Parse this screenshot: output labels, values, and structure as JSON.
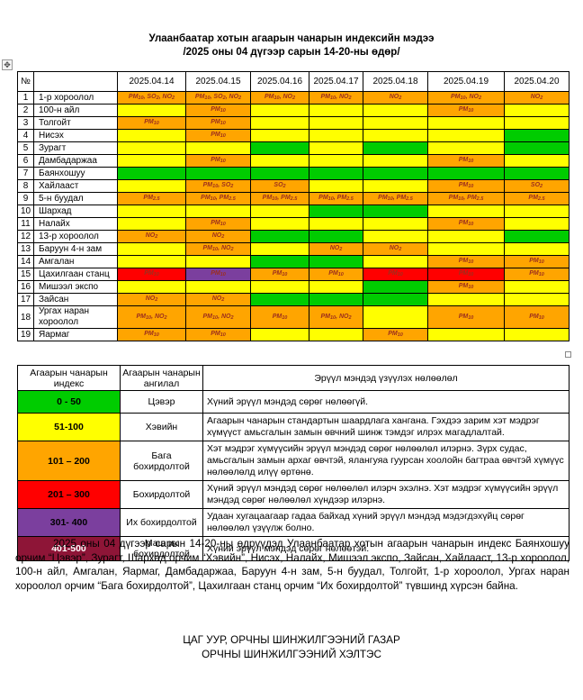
{
  "title": {
    "line1": "Улаанбаатар хотын агаарын чанарын индексийн мэдээ",
    "line2": "/2025 оны 04 дүгээр сарын 14-20-ны өдөр/"
  },
  "colors": {
    "green": "#00cc00",
    "yellow": "#ffff00",
    "orange": "#ffa500",
    "red": "#ff0000",
    "purple": "#7b3f9e",
    "darkred": "#8e1537",
    "cell_text": "#9c2f1d"
  },
  "icons": {
    "table_move_handle": "✥",
    "table_resize_handle": ""
  },
  "aqi_table": {
    "number_header": "№",
    "name_header": "",
    "date_columns": [
      "2025.04.14",
      "2025.04.15",
      "2025.04.16",
      "2025.04.17",
      "2025.04.18",
      "2025.04.19",
      "2025.04.20"
    ],
    "rows": [
      {
        "num": "1",
        "name": "1-р хороолол",
        "cells": [
          {
            "t": "PM10, SO2, NO2",
            "c": "orange"
          },
          {
            "t": "PM10, SO2, NO2",
            "c": "orange"
          },
          {
            "t": "PM10, NO2",
            "c": "orange"
          },
          {
            "t": "PM10, NO2",
            "c": "orange"
          },
          {
            "t": "NO2",
            "c": "orange"
          },
          {
            "t": "PM10, NO2",
            "c": "orange"
          },
          {
            "t": "NO2",
            "c": "orange"
          }
        ]
      },
      {
        "num": "2",
        "name": "100-н айл",
        "cells": [
          {
            "t": "",
            "c": "yellow"
          },
          {
            "t": "PM10",
            "c": "orange"
          },
          {
            "t": "",
            "c": "yellow"
          },
          {
            "t": "",
            "c": "yellow"
          },
          {
            "t": "",
            "c": "yellow"
          },
          {
            "t": "PM10",
            "c": "orange"
          },
          {
            "t": "",
            "c": "yellow"
          }
        ]
      },
      {
        "num": "3",
        "name": "Толгойт",
        "cells": [
          {
            "t": "PM10",
            "c": "orange"
          },
          {
            "t": "PM10",
            "c": "orange"
          },
          {
            "t": "",
            "c": "yellow"
          },
          {
            "t": "",
            "c": "yellow"
          },
          {
            "t": "",
            "c": "yellow"
          },
          {
            "t": "",
            "c": "yellow"
          },
          {
            "t": "",
            "c": "yellow"
          }
        ]
      },
      {
        "num": "4",
        "name": "Нисэх",
        "cells": [
          {
            "t": "",
            "c": "yellow"
          },
          {
            "t": "PM10",
            "c": "orange"
          },
          {
            "t": "",
            "c": "yellow"
          },
          {
            "t": "",
            "c": "yellow"
          },
          {
            "t": "",
            "c": "yellow"
          },
          {
            "t": "",
            "c": "yellow"
          },
          {
            "t": "",
            "c": "green"
          }
        ]
      },
      {
        "num": "5",
        "name": "Зурагт",
        "cells": [
          {
            "t": "",
            "c": "yellow"
          },
          {
            "t": "",
            "c": "yellow"
          },
          {
            "t": "",
            "c": "green"
          },
          {
            "t": "",
            "c": "yellow"
          },
          {
            "t": "",
            "c": "green"
          },
          {
            "t": "",
            "c": "yellow"
          },
          {
            "t": "",
            "c": "green"
          }
        ]
      },
      {
        "num": "6",
        "name": "Дамбадаржаа",
        "cells": [
          {
            "t": "",
            "c": "yellow"
          },
          {
            "t": "PM10",
            "c": "orange"
          },
          {
            "t": "",
            "c": "yellow"
          },
          {
            "t": "",
            "c": "yellow"
          },
          {
            "t": "",
            "c": "yellow"
          },
          {
            "t": "PM10",
            "c": "orange"
          },
          {
            "t": "",
            "c": "yellow"
          }
        ]
      },
      {
        "num": "7",
        "name": "Баянхошуу",
        "cells": [
          {
            "t": "",
            "c": "green"
          },
          {
            "t": "",
            "c": "green"
          },
          {
            "t": "",
            "c": "green"
          },
          {
            "t": "",
            "c": "green"
          },
          {
            "t": "",
            "c": "green"
          },
          {
            "t": "",
            "c": "green"
          },
          {
            "t": "",
            "c": "green"
          }
        ]
      },
      {
        "num": "8",
        "name": "Хайлааст",
        "cells": [
          {
            "t": "",
            "c": "yellow"
          },
          {
            "t": "PM10, SO2",
            "c": "orange"
          },
          {
            "t": "SO2",
            "c": "orange"
          },
          {
            "t": "",
            "c": "yellow"
          },
          {
            "t": "",
            "c": "yellow"
          },
          {
            "t": "PM10",
            "c": "orange"
          },
          {
            "t": "SO2",
            "c": "orange"
          }
        ]
      },
      {
        "num": "9",
        "name": "5-н буудал",
        "cells": [
          {
            "t": "PM2.5",
            "c": "orange"
          },
          {
            "t": "PM10, PM2.5",
            "c": "orange"
          },
          {
            "t": "PM10, PM2.5",
            "c": "orange"
          },
          {
            "t": "PM10, PM2.5",
            "c": "orange"
          },
          {
            "t": "PM10, PM2.5",
            "c": "orange"
          },
          {
            "t": "PM10, PM2.5",
            "c": "orange"
          },
          {
            "t": "PM2.5",
            "c": "orange"
          }
        ]
      },
      {
        "num": "10",
        "name": "Шархад",
        "cells": [
          {
            "t": "",
            "c": "yellow"
          },
          {
            "t": "",
            "c": "yellow"
          },
          {
            "t": "",
            "c": "yellow"
          },
          {
            "t": "",
            "c": "green"
          },
          {
            "t": "",
            "c": "green"
          },
          {
            "t": "",
            "c": "yellow"
          },
          {
            "t": "",
            "c": "yellow"
          }
        ]
      },
      {
        "num": "11",
        "name": "Налайх",
        "cells": [
          {
            "t": "",
            "c": "yellow"
          },
          {
            "t": "PM10",
            "c": "orange"
          },
          {
            "t": "",
            "c": "yellow"
          },
          {
            "t": "",
            "c": "yellow"
          },
          {
            "t": "",
            "c": "yellow"
          },
          {
            "t": "PM10",
            "c": "orange"
          },
          {
            "t": "",
            "c": "yellow"
          }
        ]
      },
      {
        "num": "12",
        "name": "13-р хороолол",
        "cells": [
          {
            "t": "NO2",
            "c": "orange"
          },
          {
            "t": "NO2",
            "c": "orange"
          },
          {
            "t": "",
            "c": "green"
          },
          {
            "t": "",
            "c": "green"
          },
          {
            "t": "",
            "c": "yellow"
          },
          {
            "t": "",
            "c": "yellow"
          },
          {
            "t": "",
            "c": "green"
          }
        ]
      },
      {
        "num": "13",
        "name": "Баруун 4-н зам",
        "cells": [
          {
            "t": "",
            "c": "yellow"
          },
          {
            "t": "PM10, NO2",
            "c": "orange"
          },
          {
            "t": "",
            "c": "yellow"
          },
          {
            "t": "NO2",
            "c": "orange"
          },
          {
            "t": "NO2",
            "c": "orange"
          },
          {
            "t": "",
            "c": "yellow"
          },
          {
            "t": "",
            "c": "yellow"
          }
        ]
      },
      {
        "num": "14",
        "name": "Амгалан",
        "cells": [
          {
            "t": "",
            "c": "yellow"
          },
          {
            "t": "",
            "c": "yellow"
          },
          {
            "t": "",
            "c": "green"
          },
          {
            "t": "",
            "c": "green"
          },
          {
            "t": "",
            "c": "yellow"
          },
          {
            "t": "PM10",
            "c": "orange"
          },
          {
            "t": "PM10",
            "c": "orange"
          }
        ]
      },
      {
        "num": "15",
        "name": "Цахилгаан станц",
        "cells": [
          {
            "t": "PM10",
            "c": "red"
          },
          {
            "t": "PM10",
            "c": "purple"
          },
          {
            "t": "PM10",
            "c": "orange"
          },
          {
            "t": "PM10",
            "c": "orange"
          },
          {
            "t": "PM10",
            "c": "red"
          },
          {
            "t": "PM10",
            "c": "red"
          },
          {
            "t": "PM10",
            "c": "orange"
          }
        ]
      },
      {
        "num": "16",
        "name": "Мишээл экспо",
        "cells": [
          {
            "t": "",
            "c": "yellow"
          },
          {
            "t": "",
            "c": "yellow"
          },
          {
            "t": "",
            "c": "yellow"
          },
          {
            "t": "",
            "c": "yellow"
          },
          {
            "t": "",
            "c": "green"
          },
          {
            "t": "PM10",
            "c": "orange"
          },
          {
            "t": "",
            "c": "yellow"
          }
        ]
      },
      {
        "num": "17",
        "name": "Зайсан",
        "cells": [
          {
            "t": "NO2",
            "c": "orange"
          },
          {
            "t": "NO2",
            "c": "orange"
          },
          {
            "t": "",
            "c": "green"
          },
          {
            "t": "",
            "c": "green"
          },
          {
            "t": "",
            "c": "green"
          },
          {
            "t": "",
            "c": "yellow"
          },
          {
            "t": "",
            "c": "yellow"
          }
        ]
      },
      {
        "num": "18",
        "name": "Ургах наран хороолол",
        "cells": [
          {
            "t": "PM10, NO2",
            "c": "orange"
          },
          {
            "t": "PM10, NO2",
            "c": "orange"
          },
          {
            "t": "PM10",
            "c": "orange"
          },
          {
            "t": "PM10, NO2",
            "c": "orange"
          },
          {
            "t": "",
            "c": "yellow"
          },
          {
            "t": "PM10",
            "c": "orange"
          },
          {
            "t": "PM10",
            "c": "orange"
          }
        ]
      },
      {
        "num": "19",
        "name": "Яармаг",
        "cells": [
          {
            "t": "PM10",
            "c": "orange"
          },
          {
            "t": "PM10",
            "c": "orange"
          },
          {
            "t": "",
            "c": "yellow"
          },
          {
            "t": "",
            "c": "yellow"
          },
          {
            "t": "PM10",
            "c": "orange"
          },
          {
            "t": "",
            "c": "yellow"
          },
          {
            "t": "",
            "c": "yellow"
          }
        ]
      }
    ]
  },
  "legend": {
    "headers": [
      "Агаарын чанарын индекс",
      "Агаарын чанарын ангилал",
      "Эрүүл мэндэд үзүүлэх нөлөөлөл"
    ],
    "rows": [
      {
        "range": "0 - 50",
        "color": "green",
        "text_color": "#000000",
        "class": "Цэвэр",
        "effect": "Хүний эрүүл мэндэд сөрөг нөлөөгүй."
      },
      {
        "range": "51-100",
        "color": "yellow",
        "text_color": "#000000",
        "class": "Хэвийн",
        "effect": "Агаарын чанарын стандартын шаардлага хангана. Гэхдээ зарим хэт мэдрэг хүмүүст  амьсгалын замын өвчний шинж тэмдэг илрэх магадлалтай."
      },
      {
        "range": "101 – 200",
        "color": "orange",
        "text_color": "#000000",
        "class": "Бага бохирдолтой",
        "effect": "Хэт мэдрэг хүмүүсийн эрүүл мэндэд  сөрөг нөлөөлөл илэрнэ. Зүрх судас, амьсгалын замын архаг өвчтэй, ялангуяа гуурсан хоолойн багтраа өвчтэй хүмүүс нөлөөлөлд илүү өртөнө."
      },
      {
        "range": "201 – 300",
        "color": "red",
        "text_color": "#000000",
        "class": "Бохирдолтой",
        "effect": "Хүний эрүүл мэндэд сөрөг нөлөөлөл илэрч эхэлнэ. Хэт мэдрэг хүмүүсийн эрүүл мэндэд сөрөг нөлөөлөл хүндээр илэрнэ."
      },
      {
        "range": "301- 400",
        "color": "purple",
        "text_color": "#000000",
        "class": "Их бохирдолтой",
        "effect": "Удаан хугацаагаар гадаа байхад хүний эрүүл мэндэд мэдэгдэхүйц сөрөг нөлөөлөл үзүүлж болно."
      },
      {
        "range": "401-500",
        "color": "darkred",
        "text_color": "#ffffff",
        "class": "Маш их бохирдолтой",
        "effect": "Хүний эрүүл мэндэд сөрөг нөлөөтэй."
      }
    ]
  },
  "summary": "2025 оны 04 дүгээр сарын 14-20-ны өдрүүдэд Улаанбаатар хотын агаарын чанарын индекс Баянхошуу орчим “Цэвэр”, Зурагт, Шархад орчим “Хэвийн”, Нисэх, Налайх, Мишээл экспо, Зайсан, Хайлааст, 13-р хороолол, 100-н айл, Амгалан, Яармаг, Дамбадаржаа, Баруун 4-н зам, 5-н буудал, Толгойт, 1-р хороолол, Ургах наран хороолол орчим “Бага бохирдолтой”, Цахилгаан станц орчим “Их бохирдолтой” түвшинд хүрсэн байна.",
  "footer": {
    "line1": "ЦАГ УУР, ОРЧНЫ ШИНЖИЛГЭЭНИЙ ГАЗАР",
    "line2": "ОРЧНЫ ШИНЖИЛГЭЭНИЙ ХЭЛТЭС"
  }
}
